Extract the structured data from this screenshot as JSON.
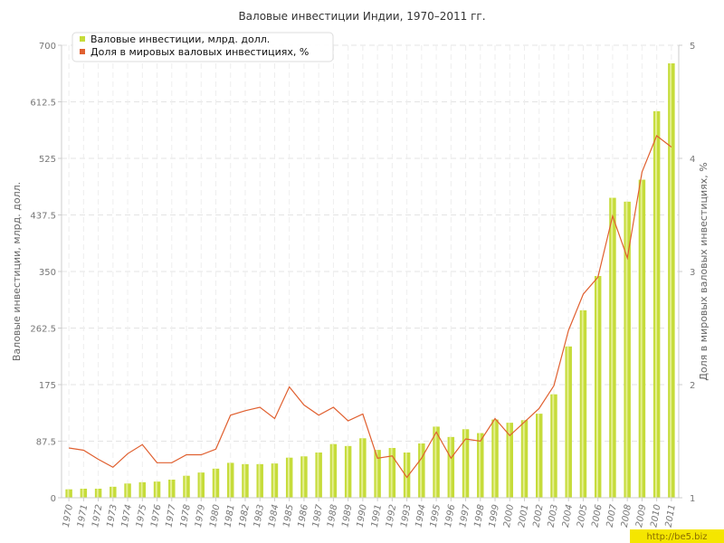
{
  "chart_data": {
    "type": "bar",
    "title": "Валовые инвестиции Индии, 1970–2011 гг.",
    "categories": [
      "1970",
      "1971",
      "1972",
      "1973",
      "1974",
      "1975",
      "1976",
      "1977",
      "1978",
      "1979",
      "1980",
      "1981",
      "1982",
      "1983",
      "1984",
      "1985",
      "1986",
      "1987",
      "1988",
      "1989",
      "1990",
      "1991",
      "1992",
      "1993",
      "1994",
      "1995",
      "1996",
      "1997",
      "1998",
      "1999",
      "2000",
      "2001",
      "2002",
      "2003",
      "2004",
      "2005",
      "2006",
      "2007",
      "2008",
      "2009",
      "2010",
      "2011"
    ],
    "ylabel_left": "Валовые инвестиции, млрд. долл.",
    "ylabel_right": "Доля в мировых валовых инвестициях, %",
    "ylim_left": [
      0,
      700
    ],
    "ylim_right": [
      1,
      5
    ],
    "yticks_left": [
      "0",
      "87.5",
      "175",
      "262.5",
      "350",
      "437.5",
      "525",
      "612.5",
      "700"
    ],
    "yticks_right": [
      "1",
      "2",
      "3",
      "4",
      "5"
    ],
    "series": [
      {
        "name": "Валовые инвестиции, млрд. долл.",
        "axis": "left",
        "kind": "bar",
        "color": "#c6dc3a",
        "values": [
          13,
          14,
          14,
          17,
          22,
          24,
          25,
          28,
          34,
          39,
          45,
          54,
          52,
          52,
          53,
          62,
          64,
          70,
          83,
          80,
          92,
          74,
          77,
          70,
          84,
          110,
          94,
          106,
          100,
          121,
          116,
          120,
          130,
          160,
          234,
          290,
          343,
          464,
          458,
          492,
          598,
          672
        ]
      },
      {
        "name": "Доля в мировых валовых инвестициях, %",
        "axis": "right",
        "kind": "line",
        "color": "#e06030",
        "values": [
          1.44,
          1.42,
          1.34,
          1.27,
          1.39,
          1.47,
          1.31,
          1.31,
          1.38,
          1.38,
          1.43,
          1.73,
          1.77,
          1.8,
          1.7,
          1.98,
          1.82,
          1.73,
          1.8,
          1.68,
          1.74,
          1.35,
          1.37,
          1.18,
          1.35,
          1.58,
          1.35,
          1.52,
          1.5,
          1.7,
          1.55,
          1.67,
          1.79,
          1.99,
          2.48,
          2.8,
          2.95,
          3.49,
          3.12,
          3.88,
          4.2,
          4.1
        ]
      }
    ],
    "grid": true,
    "legend_position": "top-left"
  },
  "watermark": "http://be5.biz"
}
